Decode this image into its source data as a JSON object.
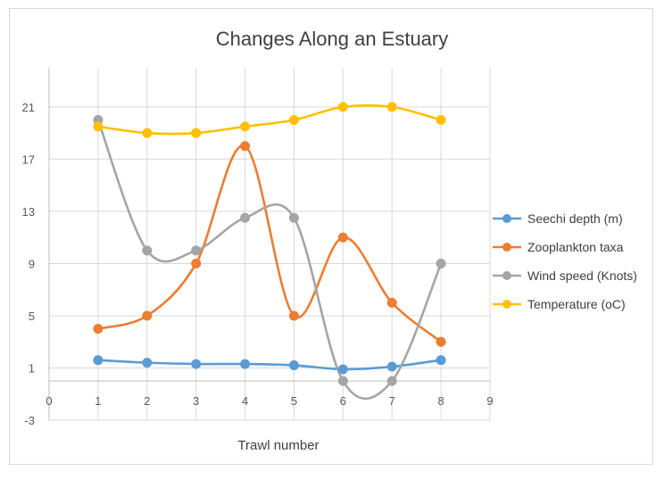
{
  "chart_data": {
    "type": "line",
    "smooth": true,
    "title": "Changes Along an Estuary",
    "xlabel": "Trawl number",
    "ylabel": "",
    "xlim": [
      0,
      9
    ],
    "ylim": [
      -3,
      24
    ],
    "x_ticks": [
      0,
      1,
      2,
      3,
      4,
      5,
      6,
      7,
      8,
      9
    ],
    "y_ticks": [
      -3,
      1,
      5,
      9,
      13,
      17,
      21
    ],
    "grid": true,
    "legend_position": "right",
    "x": [
      1,
      2,
      3,
      4,
      5,
      6,
      7,
      8
    ],
    "series": [
      {
        "name": "Seechi depth (m)",
        "color": "#5B9BD5",
        "values": [
          1.6,
          1.4,
          1.3,
          1.3,
          1.2,
          0.9,
          1.1,
          1.6
        ]
      },
      {
        "name": "Zooplankton taxa",
        "color": "#ED7D31",
        "values": [
          4,
          5,
          9,
          18,
          5,
          11,
          6,
          3
        ]
      },
      {
        "name": "Wind speed (Knots)",
        "color": "#A5A5A5",
        "values": [
          20,
          10,
          10,
          12.5,
          12.5,
          0,
          0,
          9
        ]
      },
      {
        "name": "Temperature (oC)",
        "color": "#FFC000",
        "values": [
          19.5,
          19,
          19,
          19.5,
          20,
          21,
          21,
          20
        ]
      }
    ]
  }
}
